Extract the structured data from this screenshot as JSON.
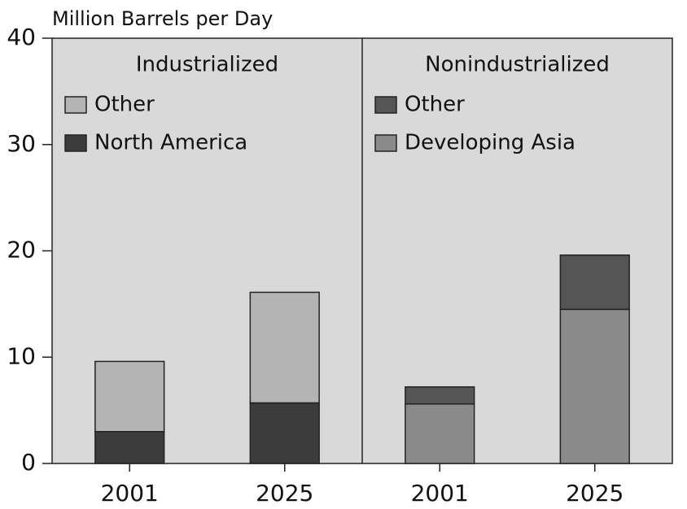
{
  "chart_data": {
    "type": "bar",
    "stacked": true,
    "ylabel": "Million Barrels per Day",
    "ylim": [
      0,
      40
    ],
    "yticks": [
      0,
      10,
      20,
      30,
      40
    ],
    "panels": [
      {
        "title": "Industrialized",
        "categories": [
          "2001",
          "2025"
        ],
        "series": [
          {
            "name": "North America",
            "color": "#3c3c3c",
            "values": [
              3.0,
              5.7
            ]
          },
          {
            "name": "Other",
            "color": "#b4b4b4",
            "values": [
              6.6,
              10.4
            ]
          }
        ]
      },
      {
        "title": "Nonindustrialized",
        "categories": [
          "2001",
          "2025"
        ],
        "series": [
          {
            "name": "Developing Asia",
            "color": "#8a8a8a",
            "values": [
              5.6,
              14.5
            ]
          },
          {
            "name": "Other",
            "color": "#555555",
            "values": [
              1.6,
              5.1
            ]
          }
        ]
      }
    ]
  }
}
